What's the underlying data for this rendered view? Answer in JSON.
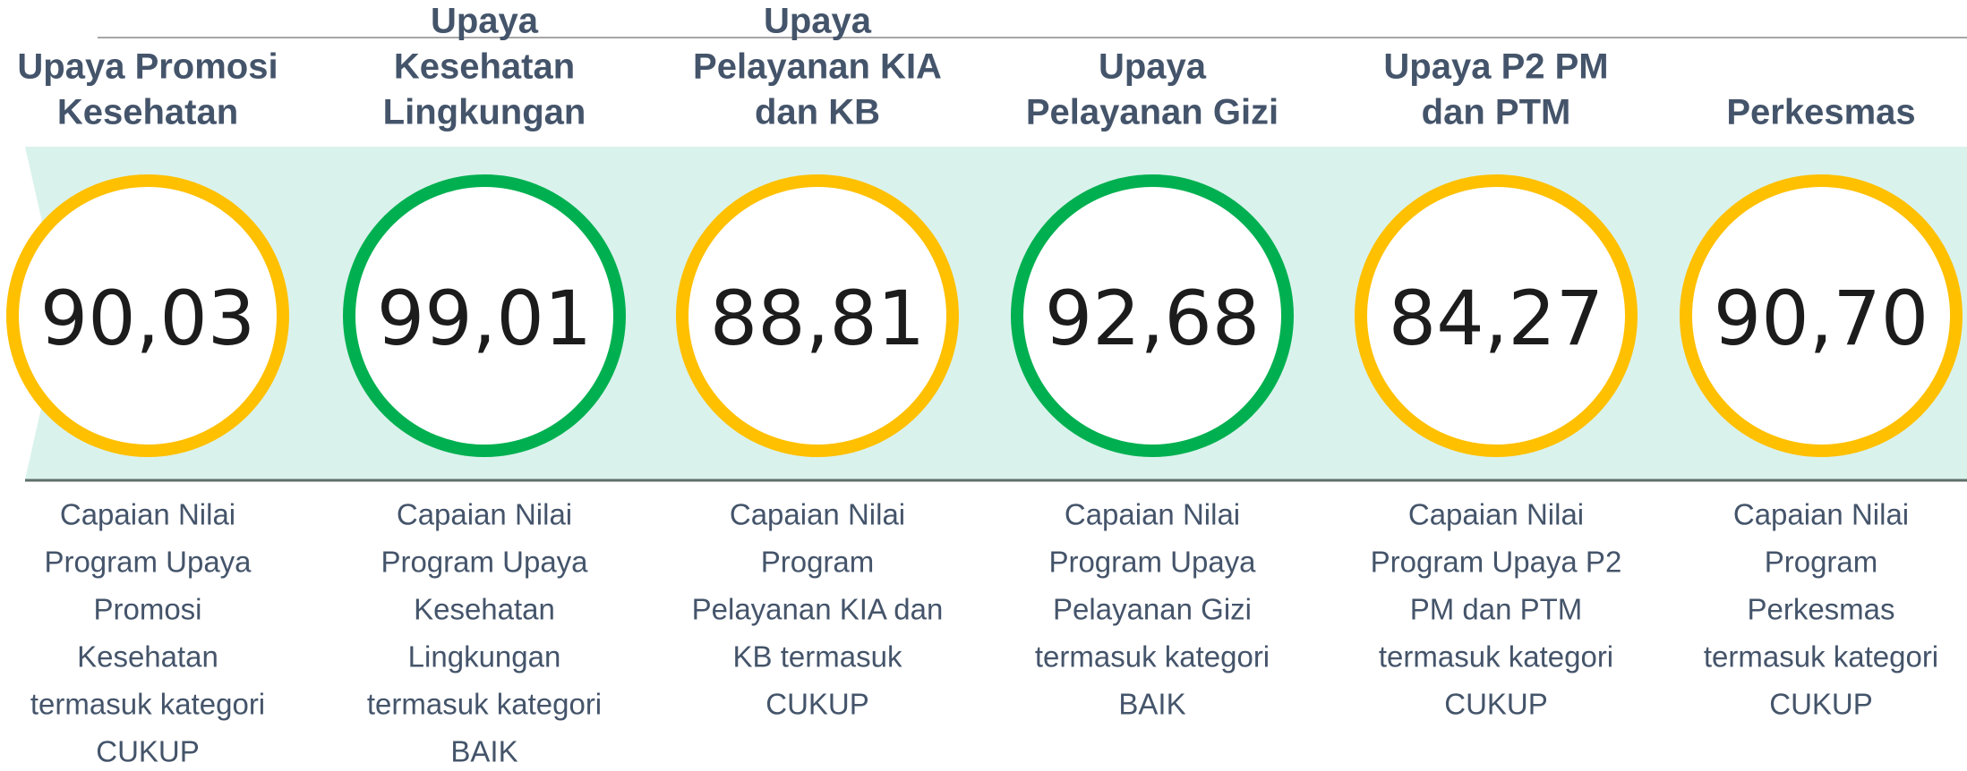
{
  "items": [
    {
      "title": [
        "Upaya Promosi",
        "Kesehatan"
      ],
      "value": "90,03",
      "color": "#FFC000",
      "description": [
        "Capaian Nilai",
        "Program Upaya",
        "Promosi",
        "Kesehatan",
        "termasuk kategori",
        "CUKUP"
      ]
    },
    {
      "title": [
        "Upaya",
        "Kesehatan",
        "Lingkungan"
      ],
      "value": "99,01",
      "color": "#00B050",
      "description": [
        "Capaian Nilai",
        "Program Upaya",
        "Kesehatan",
        "Lingkungan",
        "termasuk kategori",
        "BAIK"
      ]
    },
    {
      "title": [
        "Upaya",
        "Pelayanan KIA",
        "dan KB"
      ],
      "value": "88,81",
      "color": "#FFC000",
      "description": [
        "Capaian Nilai",
        "Program",
        "Pelayanan KIA dan",
        "KB termasuk",
        "CUKUP"
      ]
    },
    {
      "title": [
        "Upaya",
        "Pelayanan Gizi"
      ],
      "value": "92,68",
      "color": "#00B050",
      "description": [
        "Capaian Nilai",
        "Program Upaya",
        "Pelayanan Gizi",
        "termasuk kategori",
        "BAIK"
      ]
    },
    {
      "title": [
        "Upaya P2 PM",
        "dan PTM"
      ],
      "value": "84,27",
      "color": "#FFC000",
      "description": [
        "Capaian Nilai",
        "Program Upaya P2",
        "PM dan PTM",
        "termasuk kategori",
        "CUKUP"
      ]
    },
    {
      "title": [
        "Perkesmas"
      ],
      "value": "90,70",
      "color": "#FFC000",
      "description": [
        "Capaian Nilai",
        "Program",
        "Perkesmas",
        "termasuk kategori",
        "CUKUP"
      ]
    }
  ]
}
